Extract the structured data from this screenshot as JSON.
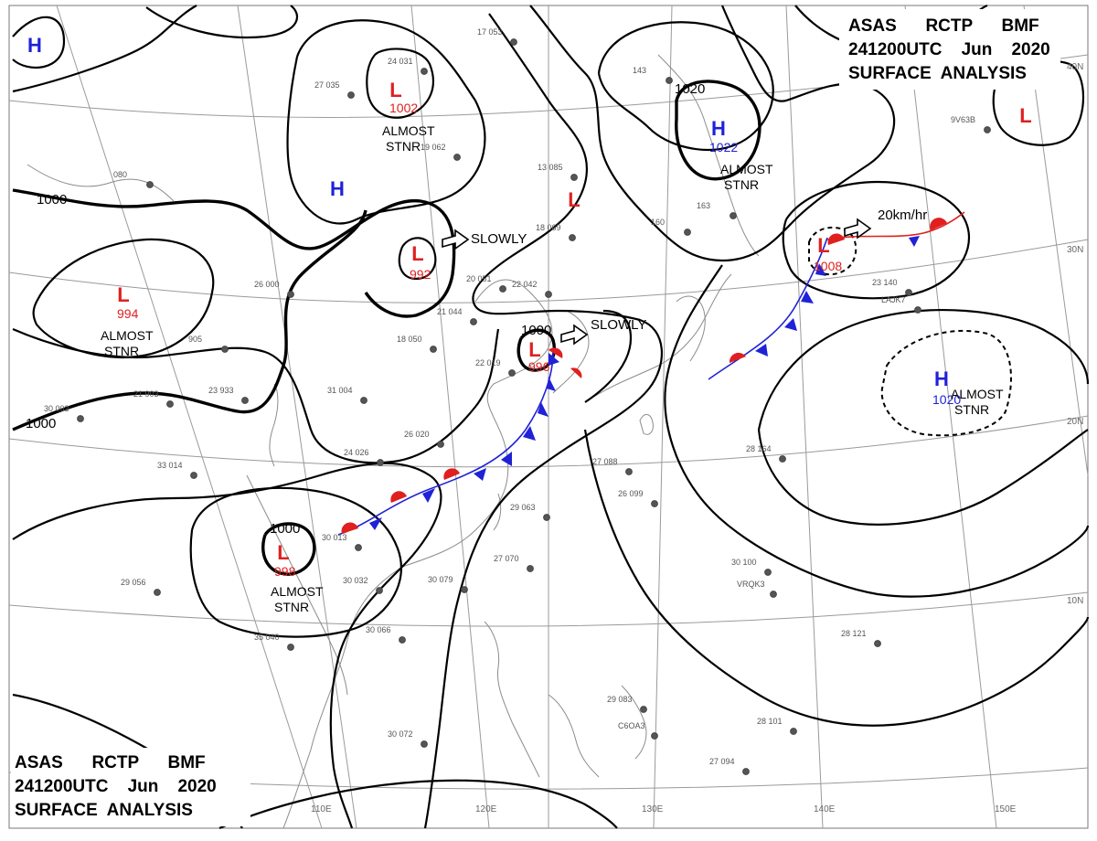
{
  "header_top": {
    "line1": "ASAS      RCTP      BMF",
    "line2": "241200UTC    Jun    2020",
    "line3": "SURFACE  ANALYSIS"
  },
  "header_bottom": {
    "line1": "ASAS      RCTP      BMF",
    "line2": "241200UTC    Jun    2020",
    "line3": "SURFACE  ANALYSIS"
  },
  "longitude_labels": [
    "110E",
    "120E",
    "130E",
    "140E",
    "150E"
  ],
  "latitude_labels": [
    "40N",
    "30N",
    "20N",
    "10N"
  ],
  "colors": {
    "high": "#1f22d6",
    "low": "#e01f1f",
    "cold_front": "#1f22d6",
    "warm_front": "#e01f1f"
  },
  "pressure_systems": [
    {
      "kind": "H",
      "value": "",
      "note": ""
    },
    {
      "kind": "L",
      "value": "1002",
      "note": "ALMOST|STNR"
    },
    {
      "kind": "H",
      "value": "",
      "note": ""
    },
    {
      "kind": "L",
      "value": "992",
      "note": ""
    },
    {
      "kind": "L",
      "value": "994",
      "note": "ALMOST|STNR"
    },
    {
      "kind": "L",
      "value": "996",
      "note": ""
    },
    {
      "kind": "L",
      "value": "998",
      "note": "ALMOST|STNR"
    },
    {
      "kind": "L",
      "value": "",
      "note": ""
    },
    {
      "kind": "H",
      "value": "1022",
      "note": "ALMOST|STNR"
    },
    {
      "kind": "L",
      "value": "1008",
      "note": ""
    },
    {
      "kind": "H",
      "value": "1020",
      "note": "ALMOST|STNR"
    },
    {
      "kind": "L",
      "value": "",
      "note": ""
    }
  ],
  "isobar_labels": [
    "1000",
    "1000",
    "1020",
    "1000",
    "1000"
  ],
  "motion_labels": [
    "SLOWLY",
    "SLOWLY",
    "20km/hr"
  ],
  "stations": [
    {
      "id": "ship-9v63b",
      "text": "9V63B"
    },
    {
      "id": "ship-lajk7",
      "text": "LAJK7"
    },
    {
      "id": "ship-vrqk3",
      "text": "VRQK3"
    },
    {
      "id": "ship-c6oa3",
      "text": "C6OA3"
    },
    {
      "id": "st-053",
      "text": "17 053"
    },
    {
      "id": "st-031",
      "text": "24 031"
    },
    {
      "id": "st-035",
      "text": "27 035"
    },
    {
      "id": "st-050",
      "text": "18 050"
    },
    {
      "id": "st-051",
      "text": "20 051"
    },
    {
      "id": "st-042",
      "text": "22 042"
    },
    {
      "id": "st-044",
      "text": "21 044"
    },
    {
      "id": "st-019",
      "text": "22 019"
    },
    {
      "id": "st-004",
      "text": "31 004"
    },
    {
      "id": "st-020",
      "text": "26 020"
    },
    {
      "id": "st-026",
      "text": "24 026"
    },
    {
      "id": "st-014",
      "text": "33 014"
    },
    {
      "id": "st-013",
      "text": "30 013"
    },
    {
      "id": "st-032",
      "text": "30 032"
    },
    {
      "id": "st-056",
      "text": "29 056"
    },
    {
      "id": "st-066",
      "text": "30 066"
    },
    {
      "id": "st-040",
      "text": "35 040"
    },
    {
      "id": "st-072",
      "text": "30 072"
    },
    {
      "id": "st-079",
      "text": "30 079"
    },
    {
      "id": "st-063",
      "text": "29 063"
    },
    {
      "id": "st-070",
      "text": "27 070"
    },
    {
      "id": "st-088",
      "text": "27 088"
    },
    {
      "id": "st-099",
      "text": "26 099"
    },
    {
      "id": "st-083",
      "text": "29 083"
    },
    {
      "id": "st-094",
      "text": "27 094"
    },
    {
      "id": "st-101",
      "text": "28 101"
    },
    {
      "id": "st-121",
      "text": "28 121"
    },
    {
      "id": "st-100",
      "text": "30 100"
    },
    {
      "id": "st-164",
      "text": "28 164"
    },
    {
      "id": "st-140",
      "text": "23 140"
    },
    {
      "id": "st-163",
      "text": "163"
    },
    {
      "id": "st-160",
      "text": "160"
    },
    {
      "id": "st-143",
      "text": "143"
    },
    {
      "id": "st-085",
      "text": "13 085"
    },
    {
      "id": "st-069",
      "text": "18 069"
    },
    {
      "id": "st-062",
      "text": "19 062"
    },
    {
      "id": "st-903",
      "text": "21 903"
    },
    {
      "id": "st-933",
      "text": "23 933"
    },
    {
      "id": "st-905",
      "text": "905"
    },
    {
      "id": "st-080",
      "text": "080"
    },
    {
      "id": "st-000",
      "text": "26 000"
    },
    {
      "id": "st-003",
      "text": "30 003"
    }
  ]
}
